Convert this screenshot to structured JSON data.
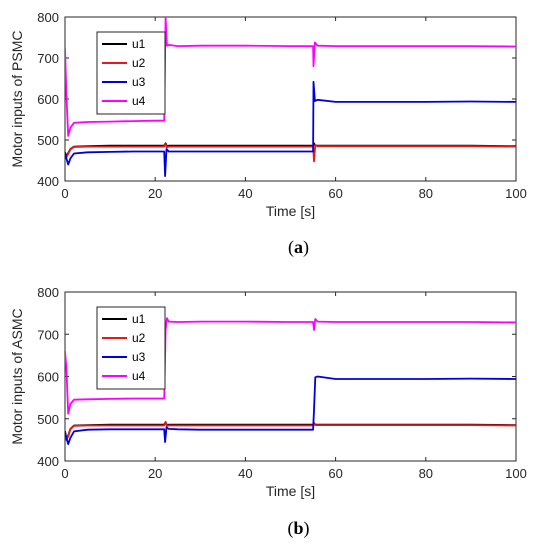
{
  "chart_data": [
    {
      "type": "line",
      "caption_letter": "a",
      "xlabel": "Time [s]",
      "ylabel": "Motor inputs of PSMC",
      "xlim": [
        0,
        100
      ],
      "ylim": [
        400,
        800
      ],
      "xticks": [
        0,
        20,
        40,
        60,
        80,
        100
      ],
      "yticks": [
        400,
        500,
        600,
        700,
        800
      ],
      "legend_position": "top-left",
      "series": [
        {
          "name": "u1",
          "color": "#000000",
          "x": [
            0,
            0.3,
            0.7,
            1.2,
            2,
            5,
            10,
            15,
            20,
            22,
            22.3,
            22.6,
            23,
            25,
            30,
            40,
            50,
            55,
            55.2,
            55.5,
            56,
            60,
            70,
            80,
            90,
            100
          ],
          "y": [
            470,
            460,
            468,
            478,
            484,
            485,
            486,
            486,
            486,
            486,
            492,
            485,
            486,
            486,
            486,
            486,
            486,
            486,
            492,
            486,
            486,
            486,
            486,
            486,
            486,
            485
          ]
        },
        {
          "name": "u2",
          "color": "#e41a1c",
          "x": [
            0,
            0.3,
            0.7,
            1.2,
            2,
            5,
            10,
            15,
            20,
            22,
            22.3,
            22.6,
            23,
            25,
            30,
            40,
            50,
            55,
            55.2,
            55.5,
            56,
            60,
            70,
            80,
            90,
            100
          ],
          "y": [
            468,
            458,
            466,
            477,
            483,
            484,
            484,
            484,
            484,
            484,
            490,
            482,
            484,
            484,
            484,
            484,
            484,
            484,
            448,
            488,
            485,
            485,
            485,
            485,
            485,
            484
          ]
        },
        {
          "name": "u3",
          "color": "#0000dd",
          "x": [
            0,
            0.3,
            0.7,
            1.2,
            2,
            5,
            10,
            15,
            20,
            22,
            22.2,
            22.5,
            23,
            25,
            30,
            40,
            50,
            55,
            55.1,
            55.4,
            56,
            60,
            70,
            80,
            90,
            100
          ],
          "y": [
            470,
            455,
            440,
            455,
            467,
            470,
            471,
            472,
            472,
            472,
            412,
            478,
            472,
            472,
            472,
            472,
            472,
            472,
            642,
            595,
            598,
            593,
            593,
            593,
            594,
            593
          ]
        },
        {
          "name": "u4",
          "color": "#ff00ff",
          "x": [
            0,
            0.3,
            0.7,
            1.2,
            2,
            5,
            10,
            15,
            20,
            22,
            22.3,
            22.6,
            23,
            25,
            30,
            40,
            50,
            55,
            55.1,
            55.4,
            56,
            60,
            70,
            80,
            90,
            100
          ],
          "y": [
            725,
            610,
            510,
            530,
            542,
            544,
            545,
            546,
            547,
            547,
            800,
            730,
            732,
            729,
            730,
            730,
            729,
            729,
            680,
            738,
            730,
            729,
            729,
            729,
            729,
            728
          ]
        }
      ]
    },
    {
      "type": "line",
      "caption_letter": "b",
      "xlabel": "Time [s]",
      "ylabel": "Motor inputs of ASMC",
      "xlim": [
        0,
        100
      ],
      "ylim": [
        400,
        800
      ],
      "xticks": [
        0,
        20,
        40,
        60,
        80,
        100
      ],
      "yticks": [
        400,
        500,
        600,
        700,
        800
      ],
      "legend_position": "top-left",
      "series": [
        {
          "name": "u1",
          "color": "#000000",
          "x": [
            0,
            0.3,
            0.7,
            1.2,
            2,
            5,
            10,
            15,
            20,
            22,
            22.3,
            22.6,
            23,
            25,
            30,
            40,
            50,
            55,
            55.2,
            55.5,
            56,
            60,
            70,
            80,
            90,
            100
          ],
          "y": [
            470,
            452,
            460,
            476,
            484,
            485,
            486,
            486,
            486,
            486,
            492,
            485,
            486,
            486,
            486,
            486,
            486,
            486,
            490,
            486,
            486,
            486,
            486,
            486,
            486,
            485
          ]
        },
        {
          "name": "u2",
          "color": "#e41a1c",
          "x": [
            0,
            0.3,
            0.7,
            1.2,
            2,
            5,
            10,
            15,
            20,
            22,
            22.3,
            22.6,
            23,
            25,
            30,
            40,
            50,
            55,
            55.2,
            55.5,
            56,
            60,
            70,
            80,
            90,
            100
          ],
          "y": [
            468,
            450,
            458,
            475,
            483,
            484,
            484,
            484,
            484,
            484,
            492,
            483,
            484,
            484,
            484,
            484,
            484,
            484,
            490,
            485,
            485,
            485,
            485,
            485,
            485,
            484
          ]
        },
        {
          "name": "u3",
          "color": "#0000dd",
          "x": [
            0,
            0.3,
            0.7,
            1.2,
            2,
            5,
            10,
            15,
            20,
            22,
            22.2,
            22.5,
            23,
            25,
            30,
            40,
            50,
            55,
            55.2,
            55.5,
            56,
            60,
            70,
            80,
            90,
            100
          ],
          "y": [
            470,
            455,
            440,
            455,
            470,
            474,
            475,
            475,
            475,
            475,
            445,
            480,
            476,
            475,
            474,
            474,
            474,
            474,
            520,
            598,
            600,
            594,
            594,
            594,
            595,
            594
          ]
        },
        {
          "name": "u4",
          "color": "#ff00ff",
          "x": [
            0,
            0.3,
            0.7,
            1.2,
            2,
            5,
            10,
            15,
            20,
            22,
            22.3,
            22.6,
            23,
            25,
            30,
            40,
            50,
            55,
            55.2,
            55.5,
            56,
            60,
            70,
            80,
            90,
            100
          ],
          "y": [
            660,
            620,
            512,
            535,
            545,
            546,
            547,
            548,
            548,
            548,
            710,
            738,
            730,
            729,
            730,
            730,
            729,
            729,
            710,
            736,
            730,
            729,
            729,
            729,
            729,
            728
          ]
        }
      ]
    }
  ]
}
